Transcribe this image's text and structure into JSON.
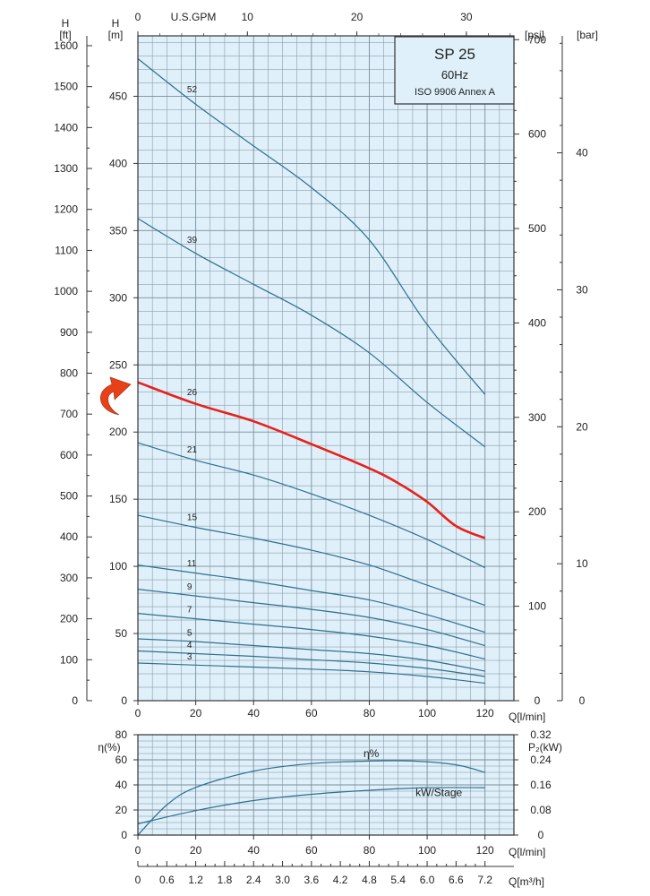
{
  "chart_data": [
    {
      "type": "line",
      "title": "SP 25",
      "subtitle": "60Hz",
      "note": "ISO 9906 Annex A",
      "x": {
        "label": "Q[l/min]",
        "range": [
          0,
          130
        ],
        "ticks": [
          0,
          20,
          40,
          60,
          80,
          100,
          120
        ]
      },
      "x_top": {
        "label": "U.S.GPM",
        "ticks": [
          0,
          10,
          20,
          30
        ]
      },
      "y_left_m": {
        "label": "H",
        "unit": "[m]",
        "range": [
          0,
          495
        ],
        "ticks": [
          0,
          50,
          100,
          150,
          200,
          250,
          300,
          350,
          400,
          450
        ]
      },
      "y_left_ft": {
        "label": "H",
        "unit": "[ft]",
        "ticks": [
          0,
          100,
          200,
          300,
          400,
          500,
          600,
          700,
          800,
          900,
          1000,
          1100,
          1200,
          1300,
          1400,
          1500,
          1600
        ]
      },
      "y_right_psi": {
        "unit": "[psi]",
        "ticks": [
          0,
          100,
          200,
          300,
          400,
          500,
          600,
          700
        ]
      },
      "y_right_bar": {
        "unit": "[bar]",
        "ticks": [
          0,
          10,
          20,
          30,
          40
        ]
      },
      "grid": true,
      "highlight": {
        "stage": "26",
        "color": "#e8211a"
      },
      "curve_color": "#2f6f8f",
      "background": "#dff0fa",
      "series": [
        {
          "name": "52",
          "x": [
            0,
            20,
            40,
            60,
            80,
            100,
            120
          ],
          "values": [
            478,
            444,
            413,
            382,
            343,
            280,
            228
          ]
        },
        {
          "name": "39",
          "x": [
            0,
            20,
            40,
            60,
            80,
            100,
            120
          ],
          "values": [
            359,
            333,
            310,
            287,
            259,
            222,
            189
          ]
        },
        {
          "name": "26",
          "x": [
            0,
            20,
            40,
            60,
            80,
            90,
            100,
            110,
            120
          ],
          "values": [
            237,
            221,
            208,
            191,
            173,
            162,
            148,
            130,
            121
          ]
        },
        {
          "name": "21",
          "x": [
            0,
            20,
            40,
            60,
            80,
            100,
            120
          ],
          "values": [
            192,
            179,
            168,
            154,
            138,
            120,
            99
          ]
        },
        {
          "name": "15",
          "x": [
            0,
            20,
            40,
            60,
            80,
            100,
            120
          ],
          "values": [
            138,
            129,
            121,
            112,
            101,
            86,
            71
          ]
        },
        {
          "name": "11",
          "x": [
            0,
            20,
            40,
            60,
            80,
            100,
            120
          ],
          "values": [
            101,
            95,
            89,
            82,
            75,
            64,
            51
          ]
        },
        {
          "name": "9",
          "x": [
            0,
            20,
            40,
            60,
            80,
            100,
            120
          ],
          "values": [
            83,
            78,
            73,
            68,
            62,
            53,
            41
          ]
        },
        {
          "name": "7",
          "x": [
            0,
            20,
            40,
            60,
            80,
            100,
            120
          ],
          "values": [
            65,
            61,
            57,
            53,
            48,
            41,
            31
          ]
        },
        {
          "name": "5",
          "x": [
            0,
            20,
            40,
            60,
            80,
            100,
            120
          ],
          "values": [
            46,
            44,
            41,
            38,
            35,
            30,
            22
          ]
        },
        {
          "name": "4",
          "x": [
            0,
            20,
            40,
            60,
            80,
            100,
            120
          ],
          "values": [
            37,
            35,
            33,
            30.5,
            28,
            24,
            18
          ]
        },
        {
          "name": "3",
          "x": [
            0,
            20,
            40,
            60,
            80,
            100,
            120
          ],
          "values": [
            28,
            26.5,
            25,
            23.5,
            21.5,
            18,
            13
          ]
        }
      ]
    },
    {
      "type": "line",
      "x": {
        "label": "Q[l/min]",
        "range": [
          0,
          130
        ],
        "ticks": [
          0,
          20,
          40,
          60,
          80,
          100,
          120
        ]
      },
      "x_bottom": {
        "label": "Q[m³/h]",
        "ticks": [
          "0",
          "0.6",
          "1.2",
          "1.8",
          "2.4",
          "3.0",
          "3.6",
          "4.2",
          "4.8",
          "5.4",
          "6.0",
          "6.6",
          "7.2"
        ]
      },
      "y_left": {
        "label": "η(%)",
        "range": [
          0,
          80
        ],
        "ticks": [
          0,
          20,
          40,
          60,
          80
        ]
      },
      "y_right": {
        "label": "P₂(kW)",
        "range": [
          0,
          0.32
        ],
        "ticks": [
          "0",
          "0.08",
          "0.16",
          "0.24",
          "0.32"
        ]
      },
      "grid": true,
      "series": [
        {
          "name": "η%",
          "axis": "left",
          "x": [
            0,
            10,
            20,
            40,
            60,
            80,
            95,
            110,
            120
          ],
          "values": [
            0,
            24,
            38,
            51,
            57,
            59,
            59,
            56,
            50
          ]
        },
        {
          "name": "kW/Stage",
          "axis": "right",
          "x": [
            0,
            20,
            40,
            60,
            80,
            100,
            120
          ],
          "values": [
            0.036,
            0.078,
            0.11,
            0.13,
            0.143,
            0.151,
            0.151
          ]
        }
      ]
    }
  ]
}
